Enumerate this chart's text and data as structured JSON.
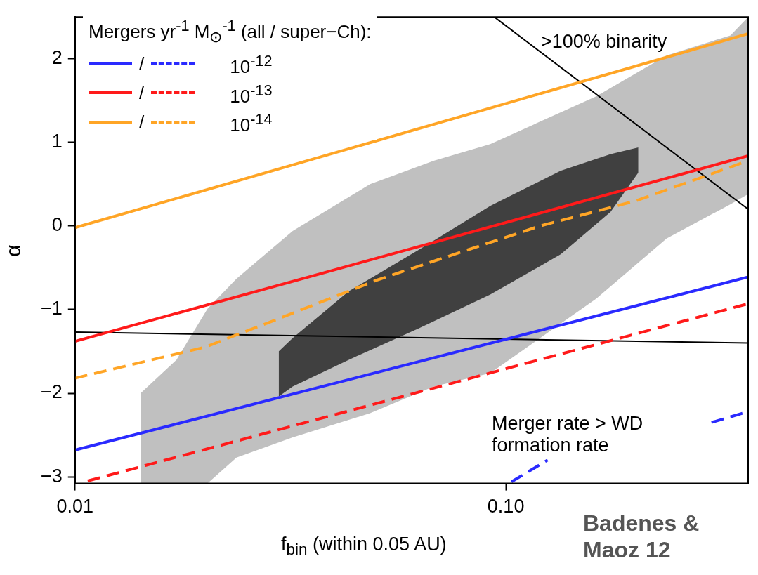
{
  "chart_data": {
    "type": "line",
    "xlabel": "f$_{bin}$ (within 0.05 AU)",
    "ylabel": "α",
    "legend_title": "Mergers yr$^{-1}$ M$_{⊙}$$^{-1}$ (all / super−Ch):",
    "log": "x",
    "grid": false,
    "legend": "top left",
    "marker": "none",
    "xlim": [
      0.01,
      0.365
    ],
    "ylim": [
      -3.08,
      2.5
    ],
    "xticks": [
      {
        "value": 0.01,
        "label": "0.01"
      },
      {
        "value": 0.1,
        "label": "0.10"
      }
    ],
    "yticks": [
      {
        "value": -3,
        "label": "−3"
      },
      {
        "value": -2,
        "label": "−2"
      },
      {
        "value": -1,
        "label": "−1"
      },
      0,
      1,
      2
    ],
    "annotations": [
      ">100% binarity",
      "Merger rate > WD formation rate",
      "Badenes & Maoz 12",
      "/",
      "/",
      "/"
    ],
    "series": [
      {
        "type": "area",
        "color": "#c0c0c0",
        "x": [
          0.0142,
          0.0172,
          0.0203,
          0.0237,
          0.032,
          0.0484,
          0.068,
          0.092,
          0.162,
          0.236,
          0.332,
          0.365
        ],
        "values": [
          null,
          null,
          null,
          null,
          null,
          null,
          null,
          null,
          null,
          null,
          null,
          null
        ],
        "upper": [
          -2.0,
          -1.6,
          -0.99,
          -0.63,
          -0.06,
          0.5,
          0.78,
          0.98,
          1.55,
          2.04,
          2.28,
          2.5
        ],
        "lower": [
          -3.08,
          -3.08,
          -3.08,
          -2.77,
          -2.53,
          -2.24,
          -1.92,
          -1.76,
          -0.87,
          -0.15,
          0.26,
          0.38
        ]
      },
      {
        "type": "area",
        "color": "#404040",
        "x": [
          0.0297,
          0.032,
          0.0432,
          0.063,
          0.092,
          0.134,
          0.175,
          0.203
        ],
        "values": [
          null,
          null,
          null,
          null,
          null,
          null,
          null,
          null
        ],
        "upper": [
          -1.5,
          -1.34,
          -0.78,
          -0.28,
          0.24,
          0.66,
          0.86,
          0.94
        ],
        "lower": [
          -2.04,
          -1.92,
          -1.6,
          -1.22,
          -0.82,
          -0.34,
          0.17,
          0.64
        ]
      },
      {
        "color": "#000000",
        "line_style": "solid",
        "x": [
          0.01,
          0.365
        ],
        "values": [
          -1.27,
          -1.4
        ]
      },
      {
        "color": "#000000",
        "line_style": "solid",
        "x": [
          0.094,
          0.365
        ],
        "values": [
          2.5,
          0.2
        ]
      },
      {
        "name": "10$^{-12}$",
        "color": "#2a2aff",
        "line_style": "solid",
        "x": [
          0.01,
          0.365
        ],
        "values": [
          -2.68,
          -0.61
        ]
      },
      {
        "color": "#2a2aff",
        "line_style": "dashed",
        "x": [
          0.103,
          0.125,
          0.2,
          0.3,
          0.365
        ],
        "values": [
          -3.06,
          -2.8,
          null,
          -2.35,
          -2.22
        ]
      },
      {
        "name": "10$^{-13}$",
        "color": "#ff1a1a",
        "line_style": "solid",
        "x": [
          0.01,
          0.365
        ],
        "values": [
          -1.38,
          0.84
        ]
      },
      {
        "color": "#ff1a1a",
        "line_style": "dashed",
        "x": [
          0.0107,
          0.365
        ],
        "values": [
          -3.05,
          -0.93
        ]
      },
      {
        "name": "10$^{-14}$",
        "color": "#ffa526",
        "line_style": "solid",
        "x": [
          0.01,
          0.365
        ],
        "values": [
          -0.02,
          2.3
        ]
      },
      {
        "color": "#ffa526",
        "line_style": "dashed",
        "x": [
          0.01,
          0.02,
          0.03,
          0.05,
          0.08,
          0.12,
          0.2,
          0.365
        ],
        "values": [
          -1.82,
          -1.45,
          -1.1,
          -0.65,
          -0.3,
          0.0,
          0.3,
          0.78
        ]
      }
    ]
  }
}
